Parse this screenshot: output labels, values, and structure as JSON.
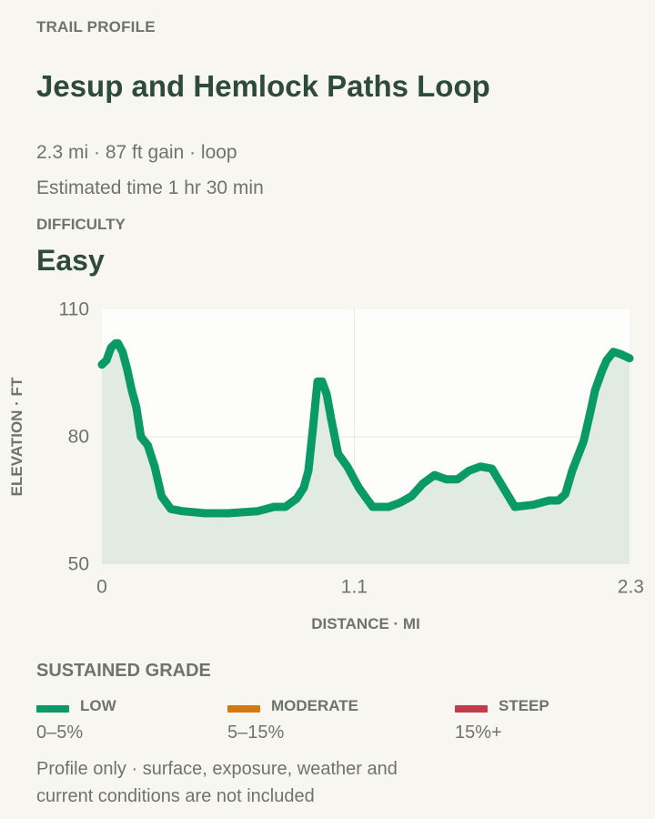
{
  "header": {
    "kicker": "TRAIL PROFILE",
    "title": "Jesup and Hemlock Paths Loop",
    "meta_line": "2.3 mi · 87 ft gain · loop",
    "time_line": "Estimated time 1 hr 30 min"
  },
  "difficulty": {
    "label": "DIFFICULTY",
    "value": "Easy"
  },
  "chart_data": {
    "type": "area",
    "xlabel": "DISTANCE · MI",
    "ylabel": "ELEVATION · FT",
    "xlim": [
      0,
      2.3
    ],
    "ylim": [
      50,
      110
    ],
    "x_ticks": [
      "0",
      "1.1",
      "2.3"
    ],
    "y_ticks": [
      "110",
      "80",
      "50"
    ],
    "grid": true,
    "line_color": "#0a9a68",
    "fill_color": "#e2ebe2",
    "series": [
      {
        "x": [
          0.0,
          0.02,
          0.04,
          0.06,
          0.07,
          0.09,
          0.11,
          0.13,
          0.15,
          0.17,
          0.2,
          0.23,
          0.26,
          0.3,
          0.35,
          0.45,
          0.55,
          0.68,
          0.75,
          0.8,
          0.85,
          0.88,
          0.9,
          0.92,
          0.94,
          0.96,
          0.98,
          1.0,
          1.03,
          1.07,
          1.12,
          1.18,
          1.25,
          1.3,
          1.35,
          1.4,
          1.45,
          1.5,
          1.55,
          1.6,
          1.65,
          1.7,
          1.75,
          1.8,
          1.88,
          1.95,
          1.99,
          2.02,
          2.05,
          2.1,
          2.13,
          2.15,
          2.18,
          2.2,
          2.23,
          2.26,
          2.3
        ],
        "y": [
          97,
          98,
          101,
          102,
          102,
          100,
          96,
          91,
          87,
          80,
          78,
          73,
          66,
          63,
          62.5,
          62,
          62,
          62.5,
          63.5,
          63.5,
          65.5,
          68,
          72,
          82,
          93,
          93,
          90,
          84,
          76,
          73,
          68,
          63.5,
          63.5,
          64.5,
          66,
          69,
          71,
          70,
          70,
          72,
          73,
          72.5,
          68,
          63.5,
          64,
          65,
          65,
          66.5,
          72,
          79,
          86,
          91,
          95.5,
          98,
          100,
          99.5,
          98.5
        ]
      }
    ]
  },
  "grade": {
    "title": "SUSTAINED GRADE",
    "levels": [
      {
        "name": "LOW",
        "range": "0–5%",
        "color": "#0a9a68"
      },
      {
        "name": "MODERATE",
        "range": "5–15%",
        "color": "#d6780c"
      },
      {
        "name": "STEEP",
        "range": "15%+",
        "color": "#c33a4a"
      }
    ]
  },
  "footnote": "Profile only · surface, exposure, weather and current conditions are not included"
}
